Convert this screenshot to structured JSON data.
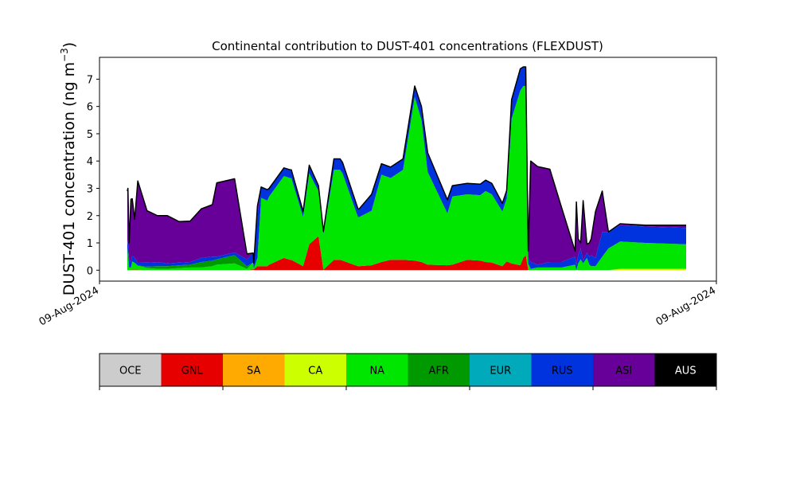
{
  "chart_data": {
    "type": "area",
    "stacked": true,
    "title": "Continental contribution to DUST-401 concentrations (FLEXDUST)",
    "ylabel": "DUST-401 concentration (ng m⁻³)",
    "ylabel_main": "DUST-401 concentration (ng m",
    "ylabel_sup": "−3",
    "ylabel_close": ")",
    "xlabel": "",
    "x_tick_labels": [
      "09-Aug-2024",
      "09-Aug-2024"
    ],
    "ylim": [
      -0.4,
      7.8
    ],
    "yticks": [
      0,
      1,
      2,
      3,
      4,
      5,
      6,
      7
    ],
    "xlim": [
      0,
      100
    ],
    "grid": false,
    "legend_placement": "colorbar below plot",
    "x": [
      4.5,
      4.6,
      4.8,
      5.1,
      5.3,
      5.7,
      6.2,
      7.7,
      9.4,
      11.0,
      12.9,
      14.7,
      16.5,
      18.3,
      19.0,
      21.9,
      23.9,
      24.9,
      25.0,
      25.6,
      26.2,
      27.2,
      27.5,
      29.9,
      30.9,
      31.1,
      33.0,
      34.0,
      35.5,
      36.3,
      38.0,
      39.0,
      39.4,
      41.9,
      42.1,
      44.1,
      45.7,
      47.2,
      49.2,
      51.1,
      52.2,
      53.2,
      56.4,
      57.2,
      59.6,
      61.7,
      62.6,
      63.6,
      65.3,
      66.0,
      66.8,
      68.2,
      68.7,
      69.1,
      69.5,
      69.9,
      71.0,
      73.0,
      74.9,
      77.1,
      77.3,
      77.6,
      78.0,
      78.4,
      79.0,
      79.4,
      79.7,
      80.4,
      81.5,
      82.5,
      84.4,
      88.5,
      95.1
    ],
    "series": [
      {
        "name": "GNL",
        "color": "#e60000",
        "values": [
          0.0,
          0.0,
          0.0,
          0.02,
          0.02,
          0.02,
          0.02,
          0.0,
          0.0,
          0.0,
          0.0,
          0.0,
          0.0,
          0.0,
          0.0,
          0.0,
          0.0,
          0.03,
          0.03,
          0.15,
          0.15,
          0.15,
          0.2,
          0.45,
          0.38,
          0.38,
          0.15,
          0.95,
          1.25,
          0.02,
          0.38,
          0.38,
          0.35,
          0.15,
          0.15,
          0.18,
          0.3,
          0.38,
          0.38,
          0.35,
          0.3,
          0.2,
          0.18,
          0.2,
          0.38,
          0.35,
          0.3,
          0.28,
          0.15,
          0.32,
          0.25,
          0.18,
          0.45,
          0.55,
          0.0,
          0.0,
          0.0,
          0.0,
          0.0,
          0.0,
          0.0,
          0.0,
          0.0,
          0.0,
          0.0,
          0.0,
          0.0,
          0.0,
          0.0,
          0.0,
          0.0,
          0.0,
          0.0
        ]
      },
      {
        "name": "CA",
        "color": "#ccff00",
        "values": [
          0.0,
          0.0,
          0.0,
          0.0,
          0.0,
          0.0,
          0.0,
          0.0,
          0.0,
          0.0,
          0.0,
          0.0,
          0.0,
          0.0,
          0.0,
          0.0,
          0.0,
          0.0,
          0.0,
          0.0,
          0.0,
          0.0,
          0.0,
          0.0,
          0.0,
          0.0,
          0.0,
          0.0,
          0.0,
          0.0,
          0.0,
          0.0,
          0.0,
          0.0,
          0.0,
          0.0,
          0.0,
          0.0,
          0.0,
          0.0,
          0.0,
          0.0,
          0.0,
          0.0,
          0.0,
          0.0,
          0.0,
          0.0,
          0.0,
          0.0,
          0.0,
          0.0,
          0.0,
          0.0,
          0.0,
          0.0,
          0.0,
          0.0,
          0.0,
          0.0,
          0.0,
          0.0,
          0.0,
          0.0,
          0.0,
          0.0,
          0.0,
          0.0,
          0.0,
          0.0,
          0.05,
          0.05,
          0.05
        ]
      },
      {
        "name": "NA",
        "color": "#00e600",
        "values": [
          0.3,
          0.8,
          0.1,
          0.08,
          0.3,
          0.25,
          0.15,
          0.08,
          0.05,
          0.05,
          0.08,
          0.1,
          0.1,
          0.15,
          0.2,
          0.25,
          0.05,
          0.25,
          0.03,
          0.3,
          2.5,
          2.4,
          2.5,
          3.0,
          3.0,
          3.0,
          1.8,
          2.6,
          1.65,
          1.3,
          3.3,
          3.3,
          3.2,
          1.8,
          1.8,
          2.0,
          3.2,
          3.0,
          3.3,
          6.0,
          5.2,
          3.4,
          1.9,
          2.5,
          2.4,
          2.4,
          2.6,
          2.5,
          2.0,
          2.3,
          5.3,
          6.4,
          6.3,
          6.2,
          0.25,
          0.05,
          0.1,
          0.1,
          0.1,
          0.2,
          0.0,
          0.25,
          0.4,
          0.25,
          0.45,
          0.2,
          0.15,
          0.15,
          0.5,
          0.8,
          1.0,
          0.95,
          0.9
        ]
      },
      {
        "name": "AFR",
        "color": "#009900",
        "values": [
          0.0,
          0.0,
          0.0,
          0.0,
          0.0,
          0.0,
          0.0,
          0.05,
          0.1,
          0.1,
          0.1,
          0.1,
          0.2,
          0.2,
          0.2,
          0.3,
          0.1,
          0.0,
          0.0,
          0.0,
          0.0,
          0.0,
          0.0,
          0.0,
          0.0,
          0.0,
          0.0,
          0.0,
          0.0,
          0.0,
          0.0,
          0.0,
          0.0,
          0.0,
          0.0,
          0.0,
          0.0,
          0.0,
          0.0,
          0.0,
          0.0,
          0.0,
          0.0,
          0.0,
          0.0,
          0.0,
          0.0,
          0.0,
          0.0,
          0.0,
          0.0,
          0.0,
          0.0,
          0.0,
          0.0,
          0.0,
          0.0,
          0.0,
          0.0,
          0.0,
          0.0,
          0.0,
          0.0,
          0.0,
          0.0,
          0.0,
          0.0,
          0.0,
          0.0,
          0.0,
          0.0,
          0.0,
          0.0
        ]
      },
      {
        "name": "RUS",
        "color": "#0033dd",
        "values": [
          0.6,
          0.3,
          0.3,
          0.2,
          0.2,
          0.2,
          0.1,
          0.15,
          0.15,
          0.1,
          0.1,
          0.1,
          0.15,
          0.15,
          0.1,
          0.1,
          0.25,
          0.35,
          0.2,
          1.6,
          0.4,
          0.4,
          0.3,
          0.3,
          0.3,
          0.3,
          0.2,
          0.3,
          0.2,
          0.1,
          0.4,
          0.4,
          0.4,
          0.3,
          0.3,
          0.6,
          0.4,
          0.4,
          0.4,
          0.4,
          0.5,
          0.7,
          0.5,
          0.4,
          0.4,
          0.4,
          0.4,
          0.4,
          0.3,
          0.3,
          0.7,
          0.8,
          0.7,
          0.7,
          0.2,
          0.25,
          0.1,
          0.2,
          0.2,
          0.3,
          0.2,
          0.3,
          0.4,
          0.1,
          0.2,
          0.3,
          0.4,
          0.3,
          0.9,
          0.6,
          0.6,
          0.6,
          0.6
        ]
      },
      {
        "name": "ASI",
        "color": "#660099",
        "values": [
          2.0,
          1.9,
          0.6,
          2.3,
          2.1,
          1.4,
          3.0,
          1.9,
          1.7,
          1.75,
          1.5,
          1.5,
          1.8,
          1.9,
          2.7,
          2.7,
          0.2,
          0.0,
          0.0,
          0.3,
          0.0,
          0.0,
          0.0,
          0.0,
          0.0,
          0.0,
          0.0,
          0.0,
          0.0,
          0.0,
          0.0,
          0.0,
          0.0,
          0.0,
          0.0,
          0.0,
          0.0,
          0.0,
          0.0,
          0.0,
          0.0,
          0.0,
          0.0,
          0.0,
          0.0,
          0.0,
          0.0,
          0.0,
          0.0,
          0.0,
          0.0,
          0.0,
          0.0,
          0.0,
          0.25,
          3.7,
          3.6,
          3.4,
          2.0,
          0.2,
          2.3,
          0.6,
          0.2,
          2.2,
          0.3,
          0.5,
          0.6,
          1.7,
          1.5,
          0.0,
          0.05,
          0.05,
          0.1
        ]
      }
    ],
    "total_line_color": "#000000",
    "legend": [
      {
        "label": "OCE",
        "color": "#cccccc",
        "text_color": "#000000"
      },
      {
        "label": "GNL",
        "color": "#e60000",
        "text_color": "#000000"
      },
      {
        "label": "SA",
        "color": "#ffaa00",
        "text_color": "#000000"
      },
      {
        "label": "CA",
        "color": "#ccff00",
        "text_color": "#000000"
      },
      {
        "label": "NA",
        "color": "#00e600",
        "text_color": "#000000"
      },
      {
        "label": "AFR",
        "color": "#009900",
        "text_color": "#000000"
      },
      {
        "label": "EUR",
        "color": "#00aabb",
        "text_color": "#000000"
      },
      {
        "label": "RUS",
        "color": "#0033dd",
        "text_color": "#000000"
      },
      {
        "label": "ASI",
        "color": "#660099",
        "text_color": "#000000"
      },
      {
        "label": "AUS",
        "color": "#000000",
        "text_color": "#ffffff"
      }
    ]
  }
}
